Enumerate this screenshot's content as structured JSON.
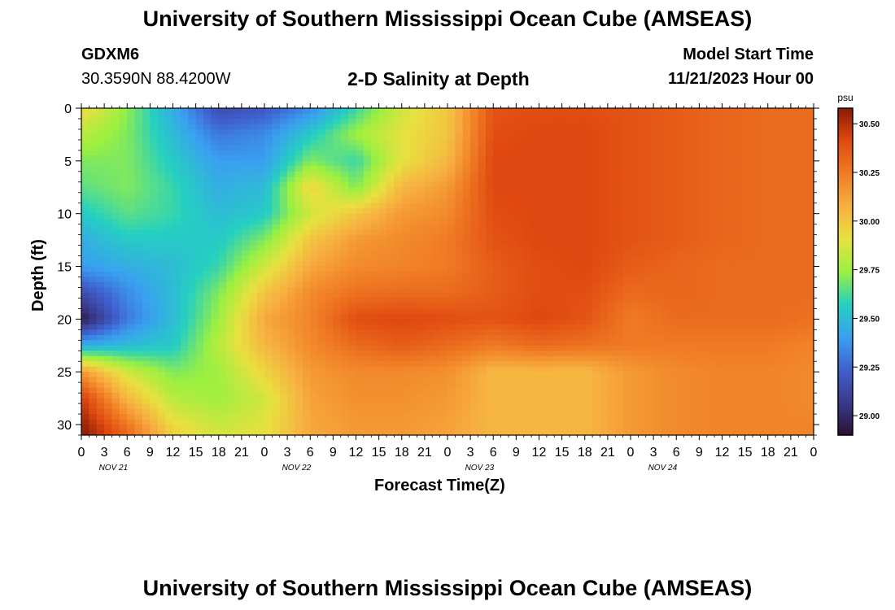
{
  "header": {
    "title": "University of Southern Mississippi Ocean Cube (AMSEAS)",
    "station": "GDXM6",
    "coords": "30.3590N  88.4200W",
    "subtitle": "2-D Salinity at Depth",
    "model_start_label": "Model Start Time",
    "model_start_value": "11/21/2023 Hour 00"
  },
  "footer": {
    "title": "University of Southern Mississippi Ocean Cube (AMSEAS)"
  },
  "colors": {
    "palette": [
      "#2a1035",
      "#3a3a8a",
      "#4060d0",
      "#3aa0f0",
      "#25d0c0",
      "#9cf040",
      "#e8e040",
      "#f7b040",
      "#f07c25",
      "#e04a10",
      "#8a1a05"
    ]
  },
  "chart_data": {
    "type": "heatmap",
    "xlabel": "Forecast Time(Z)",
    "ylabel": "Depth (ft)",
    "x_tick_labels": [
      "0",
      "3",
      "6",
      "9",
      "12",
      "15",
      "18",
      "21",
      "0",
      "3",
      "6",
      "9",
      "12",
      "15",
      "18",
      "21",
      "0",
      "3",
      "6",
      "9",
      "12",
      "15",
      "18",
      "21",
      "0",
      "3",
      "6",
      "9",
      "12",
      "15",
      "18",
      "21",
      "0"
    ],
    "day_labels": [
      "NOV 21",
      "NOV 22",
      "NOV 23",
      "NOV 24"
    ],
    "y_ticks": [
      0,
      5,
      10,
      15,
      20,
      25,
      30
    ],
    "ylim": [
      0,
      31
    ],
    "xlim_hours": [
      0,
      96
    ],
    "colorbar": {
      "unit": "psu",
      "ticks": [
        29.0,
        29.25,
        29.5,
        29.75,
        30.0,
        30.25,
        30.5
      ],
      "tick_labels": [
        "29.00",
        "29.25",
        "29.50",
        "29.75",
        "30.00",
        "30.25",
        "30.50"
      ],
      "range": [
        28.9,
        30.58
      ]
    },
    "depth_rows": [
      0,
      2.5,
      5,
      7.5,
      10,
      12.5,
      15,
      17.5,
      20,
      22.5,
      25,
      27.5,
      30.5
    ],
    "time_columns_hours": [
      0,
      6,
      12,
      18,
      24,
      30,
      36,
      42,
      48,
      54,
      60,
      66,
      72,
      78,
      84,
      90,
      96
    ],
    "salinity_psu": [
      [
        29.95,
        29.72,
        29.45,
        29.15,
        29.2,
        29.35,
        29.6,
        29.85,
        30.0,
        30.38,
        30.4,
        30.4,
        30.38,
        30.35,
        30.32,
        30.3,
        30.3
      ],
      [
        29.8,
        29.7,
        29.5,
        29.3,
        29.35,
        29.55,
        29.75,
        29.9,
        30.0,
        30.4,
        30.42,
        30.42,
        30.38,
        30.35,
        30.32,
        30.3,
        30.3
      ],
      [
        29.7,
        29.7,
        29.55,
        29.4,
        29.4,
        29.7,
        29.6,
        29.9,
        30.05,
        30.42,
        30.42,
        30.42,
        30.38,
        30.35,
        30.32,
        30.3,
        30.3
      ],
      [
        29.65,
        29.7,
        29.6,
        29.45,
        29.5,
        29.95,
        29.7,
        30.05,
        30.15,
        30.42,
        30.42,
        30.42,
        30.38,
        30.35,
        30.32,
        30.3,
        30.3
      ],
      [
        29.55,
        29.65,
        29.6,
        29.5,
        29.55,
        29.85,
        30.0,
        30.15,
        30.2,
        30.4,
        30.42,
        30.42,
        30.38,
        30.35,
        30.32,
        30.3,
        30.3
      ],
      [
        29.45,
        29.55,
        29.55,
        29.55,
        29.7,
        30.0,
        30.15,
        30.2,
        30.25,
        30.38,
        30.42,
        30.42,
        30.38,
        30.35,
        30.32,
        30.3,
        30.3
      ],
      [
        29.4,
        29.45,
        29.5,
        29.6,
        29.85,
        30.1,
        30.2,
        30.22,
        30.25,
        30.35,
        30.4,
        30.42,
        30.35,
        30.32,
        30.3,
        30.3,
        30.3
      ],
      [
        29.15,
        29.35,
        29.5,
        29.7,
        30.0,
        30.2,
        30.28,
        30.3,
        30.3,
        30.35,
        30.4,
        30.4,
        30.3,
        30.32,
        30.3,
        30.3,
        30.3
      ],
      [
        28.95,
        29.3,
        29.5,
        29.75,
        30.1,
        30.22,
        30.4,
        30.42,
        30.4,
        30.38,
        30.42,
        30.38,
        30.25,
        30.3,
        30.3,
        30.3,
        30.28
      ],
      [
        29.45,
        29.5,
        29.55,
        29.8,
        30.05,
        30.2,
        30.3,
        30.35,
        30.3,
        30.25,
        30.3,
        30.28,
        30.25,
        30.25,
        30.25,
        30.25,
        30.22
      ],
      [
        30.15,
        29.85,
        29.7,
        29.75,
        29.95,
        30.15,
        30.2,
        30.2,
        30.18,
        30.05,
        30.05,
        30.05,
        30.15,
        30.2,
        30.22,
        30.22,
        30.2
      ],
      [
        30.45,
        30.05,
        29.8,
        29.75,
        29.85,
        30.12,
        30.18,
        30.18,
        30.15,
        30.05,
        30.05,
        30.05,
        30.15,
        30.2,
        30.22,
        30.22,
        30.2
      ],
      [
        30.58,
        30.3,
        29.95,
        29.85,
        29.9,
        30.1,
        30.15,
        30.15,
        30.12,
        30.05,
        30.05,
        30.05,
        30.15,
        30.2,
        30.22,
        30.22,
        30.22
      ]
    ]
  }
}
